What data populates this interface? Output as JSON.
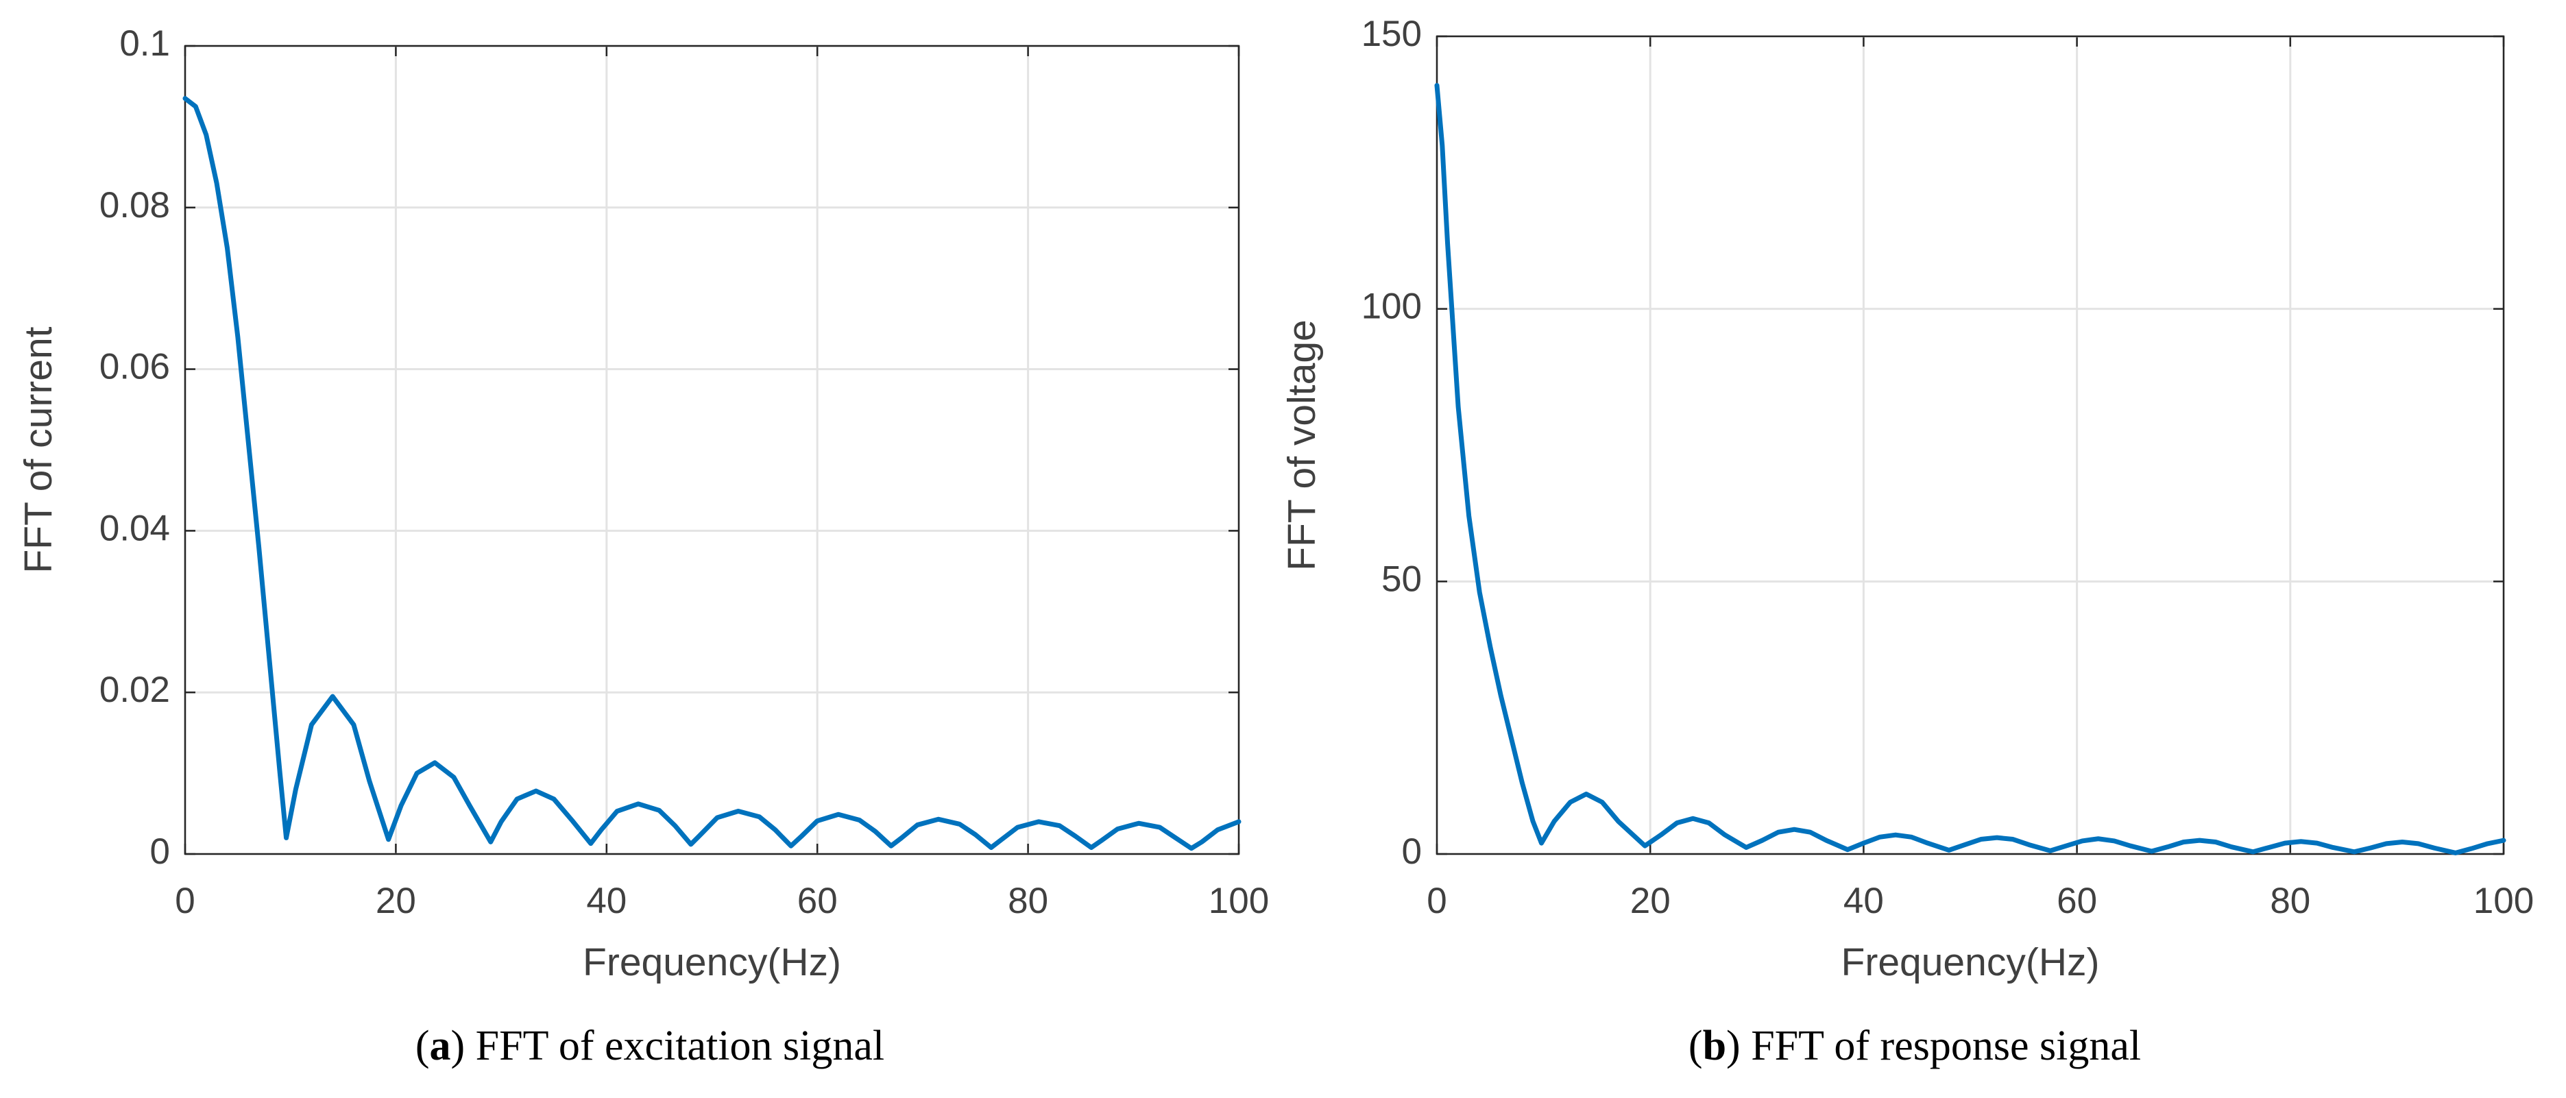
{
  "chart_data": [
    {
      "type": "line",
      "xlabel": "Frequency(Hz)",
      "ylabel": "FFT of current",
      "caption": [
        "(",
        "a",
        ") FFT of excitation signal"
      ],
      "xlim": [
        0,
        100
      ],
      "xticks": [
        0,
        20,
        40,
        60,
        80,
        100
      ],
      "ylim": [
        0,
        0.1
      ],
      "yticks": [
        0,
        0.02,
        0.04,
        0.06,
        0.08,
        0.1
      ],
      "grid": true,
      "x": [
        0,
        1,
        2,
        3,
        4,
        5,
        6,
        7,
        8,
        9,
        9.6,
        10.5,
        12,
        14,
        16,
        17.5,
        19.3,
        20.5,
        22,
        23.7,
        25.5,
        27,
        29,
        30,
        31.5,
        33.3,
        35,
        36.7,
        38.5,
        39.5,
        41,
        43,
        45,
        46.5,
        48,
        49,
        50.5,
        52.5,
        54.5,
        56,
        57.5,
        58.5,
        60,
        62,
        64,
        65.5,
        67,
        68,
        69.5,
        71.5,
        73.5,
        75,
        76.5,
        77.5,
        79,
        81,
        83,
        84.5,
        86,
        87,
        88.5,
        90.5,
        92.5,
        94,
        95.5,
        96.5,
        98,
        100
      ],
      "series": [
        {
          "color": "#0072bd",
          "values": [
            0.0935,
            0.0925,
            0.089,
            0.083,
            0.075,
            0.064,
            0.051,
            0.038,
            0.024,
            0.01,
            0.002,
            0.008,
            0.016,
            0.0195,
            0.016,
            0.009,
            0.0018,
            0.006,
            0.01,
            0.0113,
            0.0095,
            0.006,
            0.0015,
            0.004,
            0.0068,
            0.0078,
            0.0068,
            0.0042,
            0.0013,
            0.003,
            0.0053,
            0.0062,
            0.0054,
            0.0035,
            0.0012,
            0.0025,
            0.0045,
            0.0053,
            0.0046,
            0.003,
            0.001,
            0.0022,
            0.0041,
            0.0049,
            0.0042,
            0.0028,
            0.001,
            0.002,
            0.0036,
            0.0043,
            0.0037,
            0.0024,
            0.0008,
            0.0018,
            0.0033,
            0.004,
            0.0035,
            0.0022,
            0.0008,
            0.0017,
            0.0031,
            0.0038,
            0.0033,
            0.002,
            0.0007,
            0.0015,
            0.003,
            0.004
          ]
        }
      ]
    },
    {
      "type": "line",
      "xlabel": "Frequency(Hz)",
      "ylabel": "FFT of voltage",
      "caption": [
        "(",
        "b",
        ") FFT of response signal"
      ],
      "xlim": [
        0,
        100
      ],
      "xticks": [
        0,
        20,
        40,
        60,
        80,
        100
      ],
      "ylim": [
        0,
        150
      ],
      "yticks": [
        0,
        50,
        100,
        150
      ],
      "grid": true,
      "x": [
        0,
        0.5,
        1,
        2,
        3,
        4,
        5,
        6,
        7,
        8,
        9,
        9.8,
        11,
        12.5,
        14,
        15.5,
        17,
        19.5,
        21,
        22.5,
        24,
        25.5,
        27,
        29,
        30.5,
        32,
        33.5,
        35,
        36.5,
        38.5,
        40,
        41.5,
        43,
        44.5,
        46,
        48,
        49.5,
        51,
        52.5,
        54,
        55.5,
        57.5,
        59,
        60.5,
        62,
        63.5,
        65,
        67,
        68.5,
        70,
        71.5,
        73,
        74.5,
        76.5,
        78,
        79.5,
        81,
        82.5,
        84,
        86,
        87.5,
        89,
        90.5,
        92,
        93.5,
        95.5,
        97,
        98.5,
        100
      ],
      "series": [
        {
          "color": "#0072bd",
          "values": [
            141,
            130,
            112,
            82,
            62,
            48,
            38,
            29,
            21,
            13,
            6,
            2,
            6,
            9.5,
            11,
            9.5,
            6,
            1.5,
            3.5,
            5.7,
            6.5,
            5.7,
            3.5,
            1.2,
            2.5,
            4,
            4.5,
            4,
            2.5,
            0.8,
            2,
            3.1,
            3.5,
            3.1,
            2,
            0.7,
            1.7,
            2.7,
            3,
            2.7,
            1.7,
            0.6,
            1.5,
            2.4,
            2.8,
            2.4,
            1.5,
            0.5,
            1.3,
            2.2,
            2.5,
            2.2,
            1.3,
            0.4,
            1.2,
            2,
            2.3,
            2,
            1.2,
            0.4,
            1.1,
            1.9,
            2.2,
            1.9,
            1.1,
            0.2,
            1,
            1.9,
            2.5
          ]
        }
      ]
    }
  ]
}
